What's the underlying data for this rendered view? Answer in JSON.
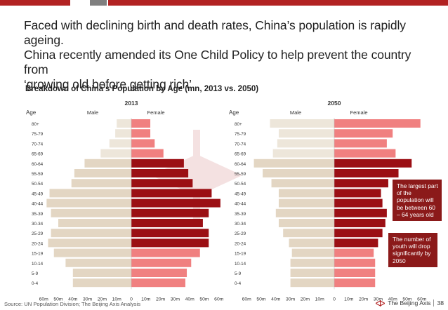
{
  "headline": {
    "line1": "Faced with declining birth and death rates, China’s population is rapidly ageing.",
    "line2": "China recently amended its One Child Policy to help prevent the country from",
    "line3": "‘growing old before getting rich’"
  },
  "subtitle": "Breakdown of China’s Population by Age (mn, 2013 vs. 2050)",
  "colors": {
    "male": "#e3d6c3",
    "male_old": "#ede6da",
    "female_old": "#f08080",
    "female_working": "#9b0f14",
    "female_young": "#f08080",
    "callout": "#8b1a1a",
    "bar_top_red": "#b22222",
    "bar_top_grey": "#7f7f7f"
  },
  "callouts": {
    "working_age": "The largest part of the population will be between 60 – 64 years old",
    "youth": "The number of youth will drop significantly by 2050"
  },
  "footer": {
    "source": "Source: UN Population Division; The Beijing Axis Analysis",
    "brand": "The Beijing Axis",
    "page": "38"
  },
  "chart_data": [
    {
      "type": "bar",
      "orientation": "horizontal",
      "title": "2013",
      "ylabel": "Age",
      "male_label": "Male",
      "female_label": "Female",
      "categories": [
        "80+",
        "75-79",
        "70-74",
        "65-69",
        "60-64",
        "55-59",
        "50-54",
        "45-49",
        "40-44",
        "35-39",
        "30-34",
        "25-29",
        "20-24",
        "15-19",
        "10-14",
        "5-9",
        "0-4"
      ],
      "series": [
        {
          "name": "Male",
          "values": [
            10,
            11,
            15,
            21,
            32,
            39,
            41,
            56,
            58,
            55,
            50,
            55,
            57,
            53,
            45,
            40,
            40
          ]
        },
        {
          "name": "Female",
          "values": [
            13,
            13,
            16,
            22,
            36,
            39,
            42,
            55,
            61,
            53,
            49,
            53,
            53,
            47,
            41,
            38,
            37
          ]
        }
      ],
      "x_ticks_left": [
        "60m",
        "50m",
        "40m",
        "30m",
        "20m",
        "10m"
      ],
      "x_ticks_right": [
        "0",
        "10m",
        "20m",
        "30m",
        "40m",
        "50m",
        "60m"
      ],
      "xlim": [
        -60,
        60
      ]
    },
    {
      "type": "bar",
      "orientation": "horizontal",
      "title": "2050",
      "ylabel": "Age",
      "male_label": "Male",
      "female_label": "Female",
      "categories": [
        "80+",
        "75-79",
        "70-74",
        "65-69",
        "60-64",
        "55-59",
        "50-54",
        "45-49",
        "40-44",
        "35-39",
        "30-34",
        "25-29",
        "20-24",
        "15-19",
        "10-14",
        "5-9",
        "0-4"
      ],
      "series": [
        {
          "name": "Male",
          "values": [
            44,
            38,
            39,
            42,
            55,
            49,
            43,
            38,
            38,
            40,
            38,
            35,
            31,
            29,
            30,
            30,
            30
          ]
        },
        {
          "name": "Female",
          "values": [
            59,
            40,
            36,
            42,
            53,
            44,
            37,
            32,
            33,
            36,
            35,
            33,
            30,
            27,
            28,
            28,
            28
          ]
        }
      ],
      "x_ticks_left": [
        "60m",
        "50m",
        "40m",
        "30m",
        "20m",
        "10m"
      ],
      "x_ticks_right": [
        "0",
        "10m",
        "20m",
        "30m",
        "40m",
        "50m",
        "60m"
      ],
      "xlim": [
        -60,
        60
      ]
    }
  ]
}
